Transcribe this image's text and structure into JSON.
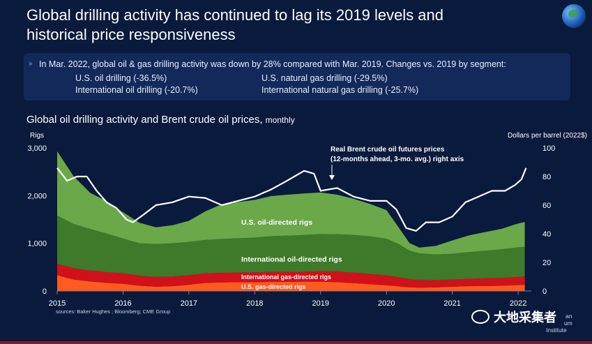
{
  "header": {
    "title_line1": "Global drilling activity has continued to lag its 2019 levels and",
    "title_line2": "historical price responsiveness"
  },
  "callout": {
    "intro": "In Mar. 2022, global oil & gas drilling activity was down by 28% compared with Mar. 2019.  Changes vs. 2019 by segment:",
    "segments": [
      "U.S. oil drilling (-36.5%)",
      "U.S. natural gas drilling (-29.5%)",
      "International oil drilling (-20.7%)",
      "International natural gas drilling (-25.7%)"
    ]
  },
  "chart_title": "Global oil drilling activity and Brent crude oil prices,",
  "chart_title_small": "monthly",
  "source": "sources: Baker Hughes ; Bloomberg; CME Group",
  "api_label": {
    "line1": "an",
    "line2": "um",
    "line3": "Institute"
  },
  "watermark": "大地采集者",
  "colors": {
    "background": "#0a1a3c",
    "us_gas": "#ff5a1f",
    "intl_gas": "#d1101a",
    "intl_oil": "#3e7a2a",
    "us_oil": "#6aa84a",
    "price": "#ffffff"
  },
  "chart_data": {
    "type": "area",
    "title": "Global oil drilling activity and Brent crude oil prices, monthly",
    "ylabel_left": "Rigs",
    "ylabel_right": "Dollars per barrel (2022$)",
    "ylim_left": [
      0,
      3000
    ],
    "ylim_right": [
      0,
      100
    ],
    "yticks_left": [
      "0",
      "1,000",
      "2,000",
      "3,000"
    ],
    "yticks_right": [
      "0",
      "20",
      "40",
      "60",
      "80",
      "100"
    ],
    "xticks": [
      "2015",
      "2016",
      "2017",
      "2018",
      "2019",
      "2020",
      "2021",
      "2022"
    ],
    "x": [
      2015.0,
      2015.25,
      2015.5,
      2015.75,
      2016.0,
      2016.25,
      2016.5,
      2016.75,
      2017.0,
      2017.25,
      2017.5,
      2017.75,
      2018.0,
      2018.25,
      2018.5,
      2018.75,
      2019.0,
      2019.25,
      2019.5,
      2019.75,
      2020.0,
      2020.2,
      2020.35,
      2020.5,
      2020.75,
      2021.0,
      2021.25,
      2021.5,
      2021.75,
      2022.0,
      2022.1
    ],
    "series": [
      {
        "name": "U.S. gas-directed rigs",
        "values": [
          330,
          240,
          200,
          170,
          150,
          110,
          90,
          100,
          130,
          170,
          180,
          185,
          185,
          190,
          190,
          195,
          195,
          185,
          165,
          140,
          120,
          95,
          75,
          70,
          75,
          90,
          100,
          105,
          110,
          125,
          130
        ]
      },
      {
        "name": "International gas-directed rigs",
        "values": [
          240,
          235,
          230,
          225,
          220,
          210,
          205,
          200,
          200,
          200,
          200,
          200,
          205,
          210,
          210,
          210,
          220,
          225,
          220,
          215,
          205,
          190,
          170,
          160,
          150,
          150,
          155,
          160,
          165,
          170,
          175
        ]
      },
      {
        "name": "International oil-directed rigs",
        "values": [
          1010,
          930,
          870,
          810,
          730,
          680,
          690,
          700,
          700,
          700,
          710,
          720,
          730,
          750,
          760,
          770,
          780,
          780,
          790,
          790,
          770,
          690,
          600,
          560,
          540,
          540,
          560,
          580,
          600,
          620,
          620
        ]
      },
      {
        "name": "U.S. oil-directed rigs",
        "values": [
          1350,
          1000,
          760,
          680,
          550,
          430,
          350,
          380,
          440,
          600,
          730,
          760,
          790,
          840,
          860,
          870,
          870,
          830,
          760,
          680,
          600,
          330,
          160,
          120,
          180,
          280,
          350,
          390,
          430,
          500,
          520
        ]
      }
    ],
    "price_series": {
      "name": "Real Brent crude oil futures prices (12-months ahead, 3-mo. avg.) right axis",
      "x": [
        2015.0,
        2015.15,
        2015.3,
        2015.45,
        2015.6,
        2015.75,
        2015.9,
        2016.05,
        2016.15,
        2016.3,
        2016.5,
        2016.75,
        2017.0,
        2017.25,
        2017.5,
        2017.75,
        2018.0,
        2018.25,
        2018.45,
        2018.6,
        2018.75,
        2018.9,
        2019.0,
        2019.25,
        2019.5,
        2019.75,
        2020.0,
        2020.15,
        2020.3,
        2020.45,
        2020.6,
        2020.8,
        2021.0,
        2021.2,
        2021.4,
        2021.6,
        2021.8,
        2021.95,
        2022.05,
        2022.12
      ],
      "values": [
        86,
        77,
        80,
        80,
        70,
        62,
        58,
        50,
        48,
        53,
        60,
        62,
        66,
        65,
        60,
        63,
        66,
        71,
        76,
        80,
        84,
        82,
        70,
        72,
        66,
        63,
        63,
        57,
        44,
        42,
        48,
        48,
        52,
        62,
        66,
        70,
        70,
        74,
        78,
        86
      ]
    },
    "annotations": [
      "Real Brent crude oil futures prices",
      "(12-months ahead, 3-mo. avg.) right axis",
      "U.S. oil-directed rigs",
      "International oil-directed rigs",
      "International gas-directed rigs",
      "U.S. gas-directed rigs"
    ]
  }
}
